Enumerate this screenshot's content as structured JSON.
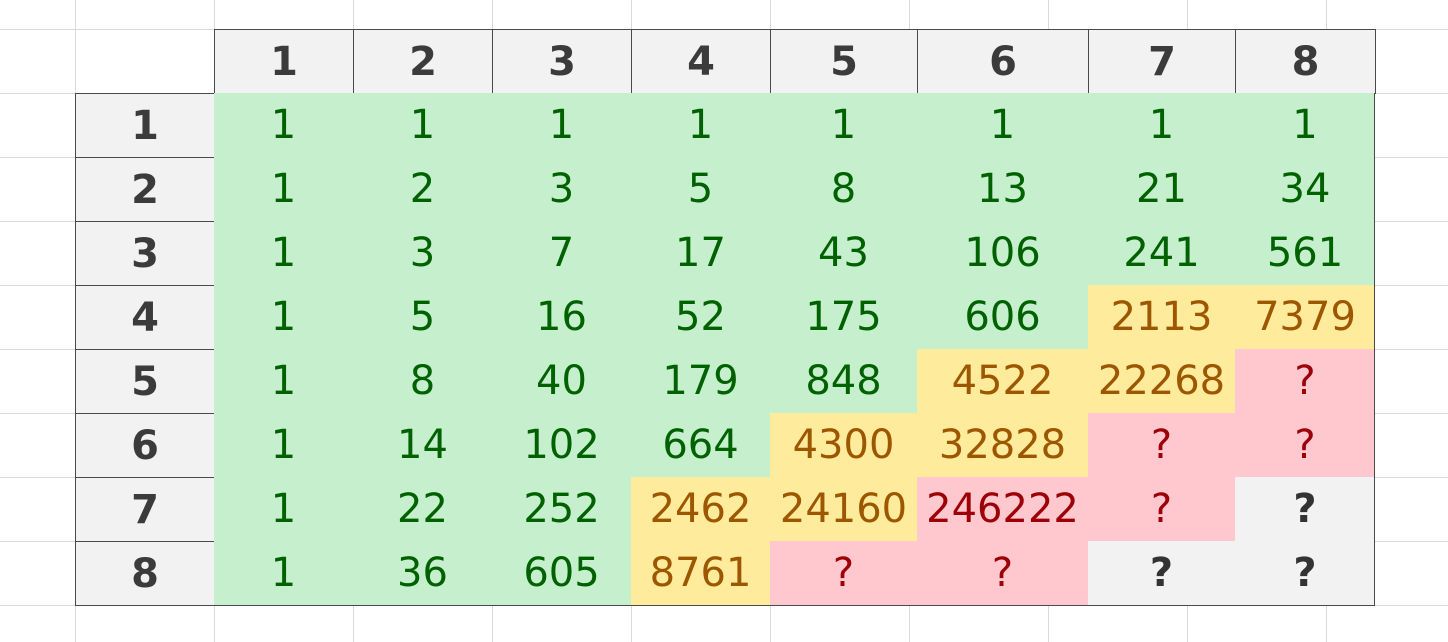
{
  "column_headers": [
    "1",
    "2",
    "3",
    "4",
    "5",
    "6",
    "7",
    "8"
  ],
  "row_headers": [
    "1",
    "2",
    "3",
    "4",
    "5",
    "6",
    "7",
    "8"
  ],
  "table": {
    "rows": [
      [
        "1",
        "1",
        "1",
        "1",
        "1",
        "1",
        "1",
        "1"
      ],
      [
        "1",
        "2",
        "3",
        "5",
        "8",
        "13",
        "21",
        "34"
      ],
      [
        "1",
        "3",
        "7",
        "17",
        "43",
        "106",
        "241",
        "561"
      ],
      [
        "1",
        "5",
        "16",
        "52",
        "175",
        "606",
        "2113",
        "7379"
      ],
      [
        "1",
        "8",
        "40",
        "179",
        "848",
        "4522",
        "22268",
        "?"
      ],
      [
        "1",
        "14",
        "102",
        "664",
        "4300",
        "32828",
        "?",
        "?"
      ],
      [
        "1",
        "22",
        "252",
        "2462",
        "24160",
        "246222",
        "?",
        "?"
      ],
      [
        "1",
        "36",
        "605",
        "8761",
        "?",
        "?",
        "?",
        "?"
      ]
    ],
    "styles": [
      [
        "green",
        "green",
        "green",
        "green",
        "green",
        "green",
        "green",
        "green"
      ],
      [
        "green",
        "green",
        "green",
        "green",
        "green",
        "green",
        "green",
        "green"
      ],
      [
        "green",
        "green",
        "green",
        "green",
        "green",
        "green",
        "green",
        "green"
      ],
      [
        "green",
        "green",
        "green",
        "green",
        "green",
        "green",
        "yellow",
        "yellow"
      ],
      [
        "green",
        "green",
        "green",
        "green",
        "green",
        "yellow",
        "yellow",
        "red"
      ],
      [
        "green",
        "green",
        "green",
        "green",
        "yellow",
        "yellow",
        "red",
        "red"
      ],
      [
        "green",
        "green",
        "green",
        "yellow",
        "yellow",
        "red",
        "red",
        "gray"
      ],
      [
        "green",
        "green",
        "green",
        "yellow",
        "red",
        "red",
        "gray",
        "gray"
      ]
    ]
  },
  "colors": {
    "green_fill": "#c6efce",
    "green_text": "#006100",
    "yellow_fill": "#ffeb9c",
    "yellow_text": "#9c5700",
    "red_fill": "#ffc7ce",
    "red_text": "#9c0006",
    "header_fill": "#f2f2f2"
  }
}
